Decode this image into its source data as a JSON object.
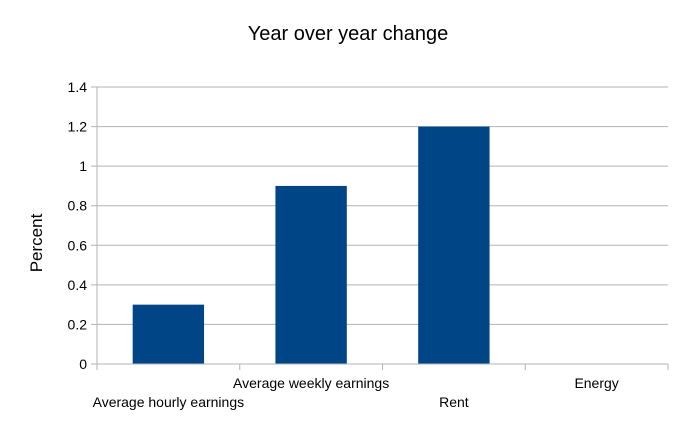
{
  "chart_data": {
    "type": "bar",
    "title": "Year over year change",
    "xlabel": "",
    "ylabel": "Percent",
    "categories": [
      "Average hourly earnings",
      "Average weekly earnings",
      "Rent",
      "Energy"
    ],
    "values": [
      0.3,
      0.9,
      1.2,
      0
    ],
    "ylim": [
      0,
      1.4
    ],
    "yticks": [
      "0",
      "0.2",
      "0.4",
      "0.6",
      "0.8",
      "1",
      "1.2",
      "1.4"
    ],
    "grid": true,
    "legend": "none",
    "bar_color": "#004586"
  }
}
